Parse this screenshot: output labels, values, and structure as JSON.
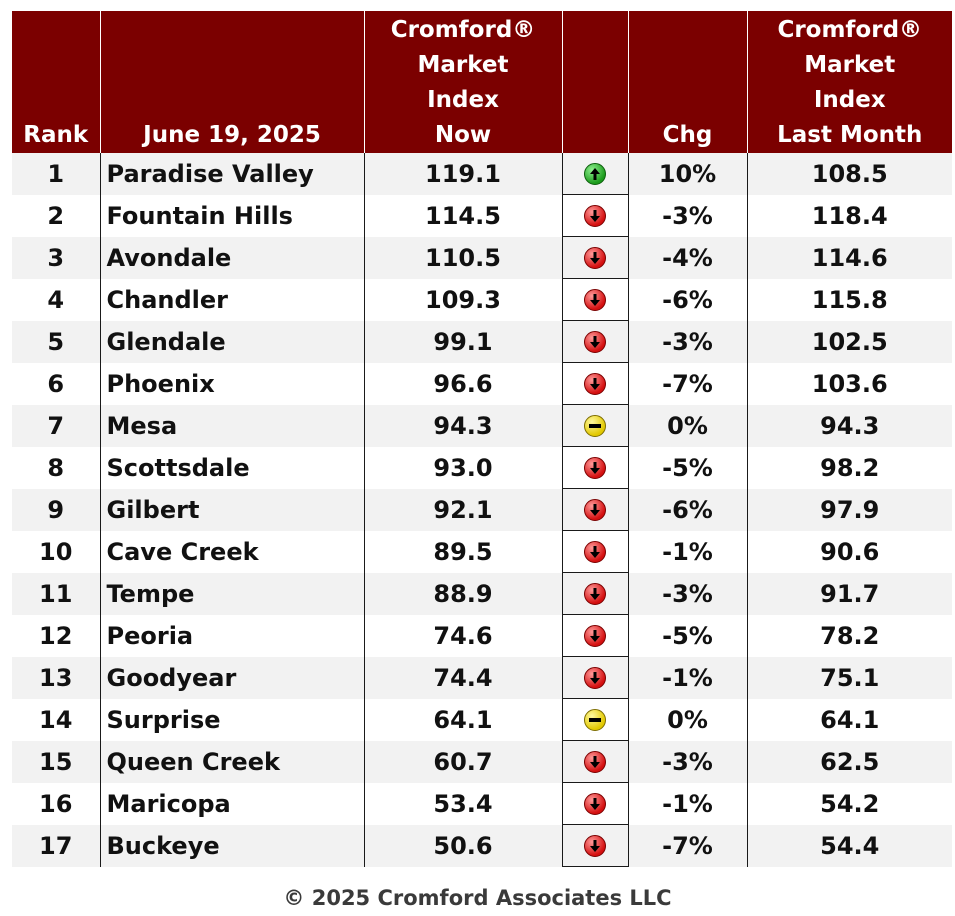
{
  "header": {
    "rank": "Rank",
    "date": "June 19, 2025",
    "now_lines": [
      "Cromford®",
      "Market",
      "Index",
      "Now"
    ],
    "chg": "Chg",
    "last_lines": [
      "Cromford®",
      "Market",
      "Index",
      "Last Month"
    ]
  },
  "rows": [
    {
      "rank": "1",
      "name": "Paradise Valley",
      "now": "119.1",
      "trend": "up-arrow-icon",
      "chg": "10%",
      "last": "108.5"
    },
    {
      "rank": "2",
      "name": "Fountain Hills",
      "now": "114.5",
      "trend": "down-arrow-icon",
      "chg": "-3%",
      "last": "118.4"
    },
    {
      "rank": "3",
      "name": "Avondale",
      "now": "110.5",
      "trend": "down-arrow-icon",
      "chg": "-4%",
      "last": "114.6"
    },
    {
      "rank": "4",
      "name": "Chandler",
      "now": "109.3",
      "trend": "down-arrow-icon",
      "chg": "-6%",
      "last": "115.8"
    },
    {
      "rank": "5",
      "name": "Glendale",
      "now": "99.1",
      "trend": "down-arrow-icon",
      "chg": "-3%",
      "last": "102.5"
    },
    {
      "rank": "6",
      "name": "Phoenix",
      "now": "96.6",
      "trend": "down-arrow-icon",
      "chg": "-7%",
      "last": "103.6"
    },
    {
      "rank": "7",
      "name": "Mesa",
      "now": "94.3",
      "trend": "minus-icon",
      "chg": "0%",
      "last": "94.3"
    },
    {
      "rank": "8",
      "name": "Scottsdale",
      "now": "93.0",
      "trend": "down-arrow-icon",
      "chg": "-5%",
      "last": "98.2"
    },
    {
      "rank": "9",
      "name": "Gilbert",
      "now": "92.1",
      "trend": "down-arrow-icon",
      "chg": "-6%",
      "last": "97.9"
    },
    {
      "rank": "10",
      "name": "Cave Creek",
      "now": "89.5",
      "trend": "down-arrow-icon",
      "chg": "-1%",
      "last": "90.6"
    },
    {
      "rank": "11",
      "name": "Tempe",
      "now": "88.9",
      "trend": "down-arrow-icon",
      "chg": "-3%",
      "last": "91.7"
    },
    {
      "rank": "12",
      "name": "Peoria",
      "now": "74.6",
      "trend": "down-arrow-icon",
      "chg": "-5%",
      "last": "78.2"
    },
    {
      "rank": "13",
      "name": "Goodyear",
      "now": "74.4",
      "trend": "down-arrow-icon",
      "chg": "-1%",
      "last": "75.1"
    },
    {
      "rank": "14",
      "name": "Surprise",
      "now": "64.1",
      "trend": "minus-icon",
      "chg": "0%",
      "last": "64.1"
    },
    {
      "rank": "15",
      "name": "Queen Creek",
      "now": "60.7",
      "trend": "down-arrow-icon",
      "chg": "-3%",
      "last": "62.5"
    },
    {
      "rank": "16",
      "name": "Maricopa",
      "now": "53.4",
      "trend": "down-arrow-icon",
      "chg": "-1%",
      "last": "54.2"
    },
    {
      "rank": "17",
      "name": "Buckeye",
      "now": "50.6",
      "trend": "down-arrow-icon",
      "chg": "-7%",
      "last": "54.4"
    }
  ],
  "footer": "© 2025 Cromford Associates LLC",
  "colors": {
    "header_bg": "#7b0000",
    "up": "#1c9b1c",
    "down": "#d40f0f",
    "flat": "#e2c800"
  }
}
